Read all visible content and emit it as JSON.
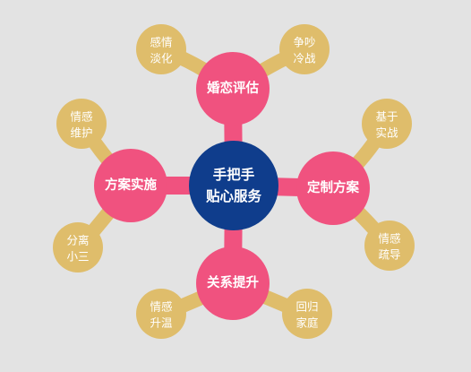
{
  "colors": {
    "background": "#e3e3e3",
    "center": "#0f3d8c",
    "branch": "#f0527f",
    "leaf": "#dfbd6b"
  },
  "center": {
    "line1": "手把手",
    "line2": "贴心服务"
  },
  "branches": {
    "top": {
      "label": "婚恋评估",
      "leaf_left": {
        "line1": "感情",
        "line2": "淡化"
      },
      "leaf_right": {
        "line1": "争吵",
        "line2": "冷战"
      }
    },
    "right": {
      "label": "定制方案",
      "leaf_top": {
        "line1": "基于",
        "line2": "实战"
      },
      "leaf_bottom": {
        "line1": "情感",
        "line2": "疏导"
      }
    },
    "bottom": {
      "label": "关系提升",
      "leaf_left": {
        "line1": "情感",
        "line2": "升温"
      },
      "leaf_right": {
        "line1": "回归",
        "line2": "家庭"
      }
    },
    "left": {
      "label": "方案实施",
      "leaf_top": {
        "line1": "情感",
        "line2": "维护"
      },
      "leaf_bottom": {
        "line1": "分离",
        "line2": "小三"
      }
    }
  }
}
